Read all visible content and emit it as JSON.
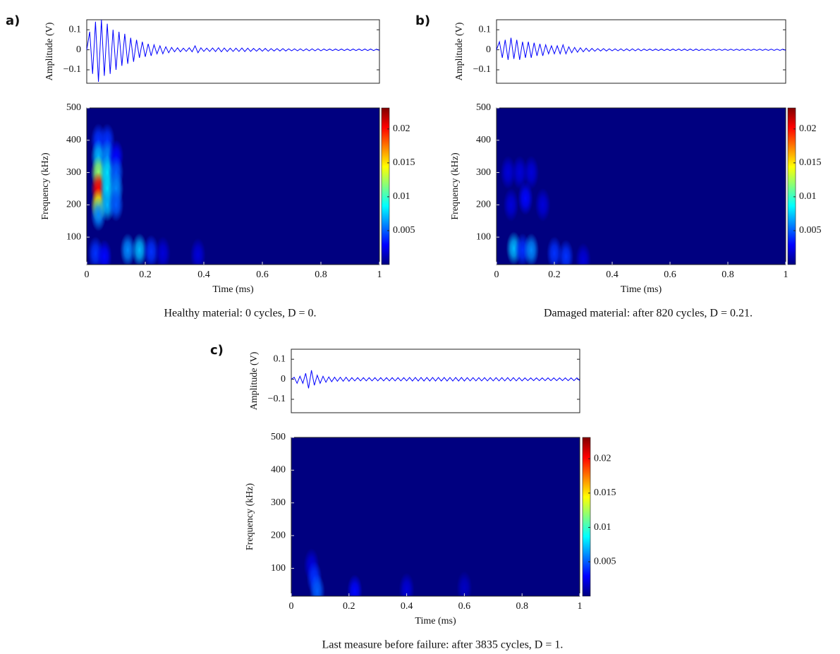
{
  "chart_data": [
    {
      "type": "line",
      "panel_label": "a)",
      "ylabel": "Amplitude (V)",
      "color": "#0000ff",
      "xlim": [
        0,
        1
      ],
      "ylim": [
        -0.167,
        0.15
      ],
      "yticks": [
        0.1,
        0,
        {
          "value": -0.1,
          "label": "−0.1"
        }
      ],
      "x": [
        0,
        0.01,
        0.02,
        0.03,
        0.04,
        0.05,
        0.06,
        0.07,
        0.08,
        0.09,
        0.1,
        0.11,
        0.12,
        0.13,
        0.14,
        0.15,
        0.16,
        0.17,
        0.18,
        0.19,
        0.2,
        0.21,
        0.22,
        0.23,
        0.24,
        0.25,
        0.26,
        0.27,
        0.28,
        0.29,
        0.3,
        0.31,
        0.32,
        0.33,
        0.34,
        0.35,
        0.36,
        0.37,
        0.38,
        0.39,
        0.4,
        0.41,
        0.42,
        0.43,
        0.44,
        0.45,
        0.46,
        0.47,
        0.48,
        0.49,
        0.5,
        0.51,
        0.52,
        0.53,
        0.54,
        0.55,
        0.56,
        0.57,
        0.58,
        0.59,
        0.6,
        0.61,
        0.62,
        0.63,
        0.64,
        0.65,
        0.66,
        0.67,
        0.68,
        0.69,
        0.7,
        0.71,
        0.72,
        0.73,
        0.74,
        0.75,
        0.76,
        0.77,
        0.78,
        0.79,
        0.8,
        0.81,
        0.82,
        0.83,
        0.84,
        0.85,
        0.86,
        0.87,
        0.88,
        0.89,
        0.9,
        0.91,
        0.92,
        0.93,
        0.94,
        0.95,
        0.96,
        0.97,
        0.98,
        0.99,
        1
      ],
      "values": [
        0,
        0.09,
        -0.12,
        0.14,
        -0.16,
        0.15,
        -0.13,
        0.13,
        -0.12,
        0.1,
        -0.1,
        0.09,
        -0.08,
        0.08,
        -0.07,
        0.06,
        -0.06,
        0.05,
        -0.04,
        0.04,
        -0.035,
        0.03,
        -0.03,
        0.025,
        -0.02,
        0.02,
        -0.02,
        0.015,
        -0.015,
        0.012,
        -0.01,
        0.01,
        -0.01,
        0.008,
        -0.008,
        0.01,
        -0.01,
        0.02,
        -0.015,
        0.01,
        -0.008,
        0.008,
        -0.008,
        0.009,
        -0.009,
        0.01,
        -0.01,
        0.009,
        -0.009,
        0.008,
        -0.008,
        0.008,
        -0.008,
        0.009,
        -0.009,
        0.008,
        -0.008,
        0.007,
        -0.007,
        0.007,
        -0.007,
        0.007,
        -0.007,
        0.006,
        -0.006,
        0.006,
        -0.006,
        0.006,
        -0.006,
        0.005,
        -0.005,
        0.005,
        -0.005,
        0.005,
        -0.005,
        0.005,
        -0.005,
        0.005,
        -0.005,
        0.005,
        -0.005,
        0.004,
        -0.004,
        0.004,
        -0.004,
        0.004,
        -0.004,
        0.004,
        -0.004,
        0.004,
        -0.004,
        0.004,
        -0.004,
        0.004,
        -0.004,
        0.004,
        -0.004,
        0.004,
        -0.004,
        0.003,
        -0.003
      ]
    },
    {
      "type": "heatmap",
      "xlabel": "Time (ms)",
      "ylabel": "Frequency (kHz)",
      "caption": "Healthy material: 0 cycles, D = 0.",
      "colormap": "jet",
      "xlim": [
        0,
        1
      ],
      "xticks": [
        0,
        0.2,
        0.4,
        0.6,
        0.8,
        1
      ],
      "ylim": [
        15,
        500
      ],
      "yticks": [
        100,
        200,
        300,
        400,
        500
      ],
      "clim": [
        0,
        0.0231
      ],
      "cticks": [
        0.005,
        0.01,
        0.015,
        0.02
      ],
      "x": [
        0.04,
        0.04,
        0.04,
        0.04,
        0.04,
        0.04,
        0.07,
        0.07,
        0.07,
        0.07,
        0.07,
        0.1,
        0.1,
        0.1,
        0.1,
        0.03,
        0.06,
        0.14,
        0.18,
        0.22,
        0.26,
        0.38
      ],
      "y": [
        400,
        350,
        300,
        250,
        200,
        170,
        400,
        350,
        300,
        250,
        200,
        350,
        300,
        250,
        200,
        50,
        40,
        60,
        60,
        55,
        50,
        45
      ],
      "values": [
        0.004,
        0.007,
        0.012,
        0.02,
        0.014,
        0.006,
        0.004,
        0.006,
        0.008,
        0.008,
        0.007,
        0.003,
        0.005,
        0.006,
        0.005,
        0.004,
        0.003,
        0.006,
        0.007,
        0.004,
        0.002,
        0.002
      ]
    },
    {
      "type": "line",
      "panel_label": "b)",
      "ylabel": "Amplitude (V)",
      "color": "#0000ff",
      "xlim": [
        0,
        1
      ],
      "ylim": [
        -0.167,
        0.15
      ],
      "yticks": [
        0.1,
        0,
        {
          "value": -0.1,
          "label": "−0.1"
        }
      ],
      "x": [
        0,
        0.01,
        0.02,
        0.03,
        0.04,
        0.05,
        0.06,
        0.07,
        0.08,
        0.09,
        0.1,
        0.11,
        0.12,
        0.13,
        0.14,
        0.15,
        0.16,
        0.17,
        0.18,
        0.19,
        0.2,
        0.21,
        0.22,
        0.23,
        0.24,
        0.25,
        0.26,
        0.27,
        0.28,
        0.29,
        0.3,
        0.31,
        0.32,
        0.33,
        0.34,
        0.35,
        0.36,
        0.37,
        0.38,
        0.39,
        0.4,
        0.41,
        0.42,
        0.43,
        0.44,
        0.45,
        0.46,
        0.47,
        0.48,
        0.49,
        0.5,
        0.51,
        0.52,
        0.53,
        0.54,
        0.55,
        0.56,
        0.57,
        0.58,
        0.59,
        0.6,
        0.61,
        0.62,
        0.63,
        0.64,
        0.65,
        0.66,
        0.67,
        0.68,
        0.69,
        0.7,
        0.71,
        0.72,
        0.73,
        0.74,
        0.75,
        0.76,
        0.77,
        0.78,
        0.79,
        0.8,
        0.81,
        0.82,
        0.83,
        0.84,
        0.85,
        0.86,
        0.87,
        0.88,
        0.89,
        0.9,
        0.91,
        0.92,
        0.93,
        0.94,
        0.95,
        0.96,
        0.97,
        0.98,
        0.99,
        1
      ],
      "values": [
        0,
        0.04,
        -0.04,
        0.05,
        -0.05,
        0.06,
        -0.045,
        0.05,
        -0.05,
        0.04,
        -0.04,
        0.04,
        -0.04,
        0.035,
        -0.03,
        0.03,
        -0.03,
        0.025,
        -0.02,
        0.02,
        -0.02,
        0.02,
        -0.02,
        0.025,
        -0.02,
        0.015,
        -0.015,
        0.012,
        -0.012,
        0.01,
        -0.01,
        0.008,
        -0.008,
        0.007,
        -0.007,
        0.006,
        -0.006,
        0.006,
        -0.006,
        0.005,
        -0.005,
        0.005,
        -0.005,
        0.005,
        -0.005,
        0.005,
        -0.005,
        0.005,
        -0.005,
        0.005,
        -0.005,
        0.004,
        -0.004,
        0.004,
        -0.004,
        0.004,
        -0.004,
        0.004,
        -0.004,
        0.004,
        -0.004,
        0.004,
        -0.004,
        0.004,
        -0.004,
        0.004,
        -0.004,
        0.004,
        -0.004,
        0.004,
        -0.004,
        0.003,
        -0.003,
        0.003,
        -0.003,
        0.003,
        -0.003,
        0.003,
        -0.003,
        0.003,
        -0.003,
        0.003,
        -0.003,
        0.003,
        -0.003,
        0.003,
        -0.003,
        0.003,
        -0.003,
        0.003,
        -0.003,
        0.003,
        -0.003,
        0.003,
        -0.003,
        0.003,
        -0.003,
        0.003,
        -0.003,
        0.003,
        -0.003
      ]
    },
    {
      "type": "heatmap",
      "xlabel": "Time (ms)",
      "ylabel": "Frequency (kHz)",
      "caption": "Damaged material: after 820 cycles, D = 0.21.",
      "colormap": "jet",
      "xlim": [
        0,
        1
      ],
      "xticks": [
        0,
        0.2,
        0.4,
        0.6,
        0.8,
        1
      ],
      "ylim": [
        15,
        500
      ],
      "yticks": [
        100,
        200,
        300,
        400,
        500
      ],
      "clim": [
        0,
        0.0231
      ],
      "cticks": [
        0.005,
        0.01,
        0.015,
        0.02
      ],
      "x": [
        0.04,
        0.08,
        0.12,
        0.05,
        0.1,
        0.16,
        0.06,
        0.09,
        0.12,
        0.2,
        0.24,
        0.3
      ],
      "y": [
        300,
        300,
        300,
        200,
        220,
        200,
        65,
        60,
        60,
        50,
        40,
        30
      ],
      "values": [
        0.002,
        0.002,
        0.002,
        0.002,
        0.003,
        0.002,
        0.007,
        0.004,
        0.006,
        0.004,
        0.004,
        0.002
      ]
    },
    {
      "type": "line",
      "panel_label": "c)",
      "ylabel": "Amplitude (V)",
      "color": "#0000ff",
      "xlim": [
        0,
        1
      ],
      "ylim": [
        -0.167,
        0.15
      ],
      "yticks": [
        0.1,
        0,
        {
          "value": -0.1,
          "label": "−0.1"
        }
      ],
      "x": [
        0,
        0.01,
        0.02,
        0.03,
        0.04,
        0.05,
        0.06,
        0.07,
        0.08,
        0.09,
        0.1,
        0.11,
        0.12,
        0.13,
        0.14,
        0.15,
        0.16,
        0.17,
        0.18,
        0.19,
        0.2,
        0.21,
        0.22,
        0.23,
        0.24,
        0.25,
        0.26,
        0.27,
        0.28,
        0.29,
        0.3,
        0.31,
        0.32,
        0.33,
        0.34,
        0.35,
        0.36,
        0.37,
        0.38,
        0.39,
        0.4,
        0.41,
        0.42,
        0.43,
        0.44,
        0.45,
        0.46,
        0.47,
        0.48,
        0.49,
        0.5,
        0.51,
        0.52,
        0.53,
        0.54,
        0.55,
        0.56,
        0.57,
        0.58,
        0.59,
        0.6,
        0.61,
        0.62,
        0.63,
        0.64,
        0.65,
        0.66,
        0.67,
        0.68,
        0.69,
        0.7,
        0.71,
        0.72,
        0.73,
        0.74,
        0.75,
        0.76,
        0.77,
        0.78,
        0.79,
        0.8,
        0.81,
        0.82,
        0.83,
        0.84,
        0.85,
        0.86,
        0.87,
        0.88,
        0.89,
        0.9,
        0.91,
        0.92,
        0.93,
        0.94,
        0.95,
        0.96,
        0.97,
        0.98,
        0.99,
        1
      ],
      "values": [
        0,
        0.01,
        -0.02,
        0.015,
        -0.02,
        0.03,
        -0.045,
        0.045,
        -0.03,
        0.02,
        -0.02,
        0.015,
        -0.015,
        0.012,
        -0.012,
        0.01,
        -0.01,
        0.01,
        -0.01,
        0.01,
        -0.01,
        0.008,
        -0.008,
        0.008,
        -0.008,
        0.008,
        -0.008,
        0.008,
        -0.008,
        0.008,
        -0.008,
        0.008,
        -0.008,
        0.008,
        -0.008,
        0.008,
        -0.008,
        0.008,
        -0.008,
        0.008,
        -0.008,
        0.009,
        -0.009,
        0.009,
        -0.009,
        0.009,
        -0.009,
        0.009,
        -0.009,
        0.009,
        -0.009,
        0.009,
        -0.009,
        0.009,
        -0.009,
        0.009,
        -0.009,
        0.009,
        -0.009,
        0.009,
        -0.009,
        0.008,
        -0.008,
        0.008,
        -0.008,
        0.008,
        -0.008,
        0.008,
        -0.008,
        0.008,
        -0.008,
        0.008,
        -0.008,
        0.008,
        -0.008,
        0.008,
        -0.008,
        0.008,
        -0.008,
        0.008,
        -0.008,
        0.007,
        -0.007,
        0.007,
        -0.007,
        0.007,
        -0.007,
        0.007,
        -0.007,
        0.007,
        -0.007,
        0.007,
        -0.007,
        0.007,
        -0.007,
        0.007,
        -0.007,
        0.007,
        -0.007,
        0.007,
        -0.007
      ]
    },
    {
      "type": "heatmap",
      "xlabel": "Time (ms)",
      "ylabel": "Frequency (kHz)",
      "caption": "Last measure before failure: after 3835 cycles, D = 1.",
      "colormap": "jet",
      "xlim": [
        0,
        1
      ],
      "xticks": [
        0,
        0.2,
        0.4,
        0.6,
        0.8,
        1
      ],
      "ylim": [
        15,
        500
      ],
      "yticks": [
        100,
        200,
        300,
        400,
        500
      ],
      "clim": [
        0,
        0.0231
      ],
      "cticks": [
        0.005,
        0.01,
        0.015,
        0.02
      ],
      "x": [
        0.07,
        0.08,
        0.09,
        0.22,
        0.4,
        0.6
      ],
      "y": [
        110,
        70,
        30,
        30,
        35,
        40
      ],
      "values": [
        0.002,
        0.004,
        0.005,
        0.003,
        0.002,
        0.0015
      ]
    }
  ]
}
